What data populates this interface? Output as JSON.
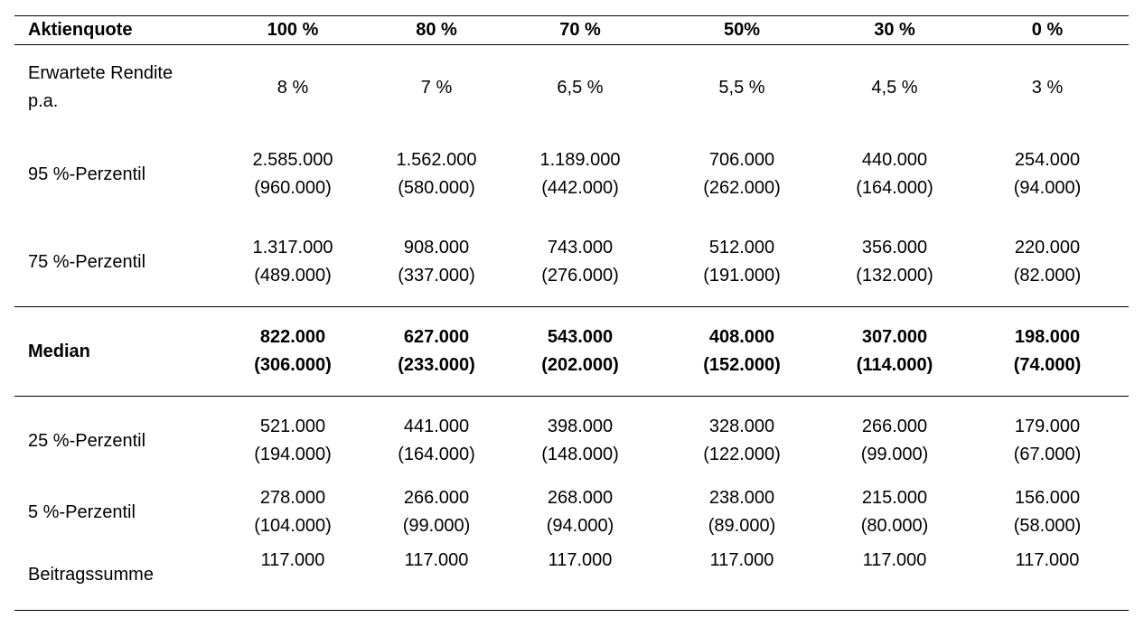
{
  "header": {
    "label": "Aktienquote",
    "columns": [
      "100 %",
      "80 %",
      "70 %",
      "50%",
      "30 %",
      "0 %"
    ]
  },
  "rows": [
    {
      "label": [
        "Erwartete Rendite",
        "p.a."
      ],
      "values": [
        [
          "8 %"
        ],
        [
          "7 %"
        ],
        [
          "6,5 %"
        ],
        [
          "5,5 %"
        ],
        [
          "4,5 %"
        ],
        [
          "3 %"
        ]
      ]
    },
    {
      "label": [
        "95 %-Perzentil"
      ],
      "values": [
        [
          "2.585.000",
          "(960.000)"
        ],
        [
          "1.562.000",
          "(580.000)"
        ],
        [
          "1.189.000",
          "(442.000)"
        ],
        [
          "706.000",
          "(262.000)"
        ],
        [
          "440.000",
          "(164.000)"
        ],
        [
          "254.000",
          "(94.000)"
        ]
      ]
    },
    {
      "label": [
        "75 %-Perzentil"
      ],
      "values": [
        [
          "1.317.000",
          "(489.000)"
        ],
        [
          "908.000",
          "(337.000)"
        ],
        [
          "743.000",
          "(276.000)"
        ],
        [
          "512.000",
          "(191.000)"
        ],
        [
          "356.000",
          "(132.000)"
        ],
        [
          "220.000",
          "(82.000)"
        ]
      ]
    },
    {
      "label": [
        "Median"
      ],
      "bold": true,
      "values": [
        [
          "822.000",
          "(306.000)"
        ],
        [
          "627.000",
          "(233.000)"
        ],
        [
          "543.000",
          "(202.000)"
        ],
        [
          "408.000",
          "(152.000)"
        ],
        [
          "307.000",
          "(114.000)"
        ],
        [
          "198.000",
          "(74.000)"
        ]
      ]
    },
    {
      "label": [
        "25 %-Perzentil"
      ],
      "values": [
        [
          "521.000",
          "(194.000)"
        ],
        [
          "441.000",
          "(164.000)"
        ],
        [
          "398.000",
          "(148.000)"
        ],
        [
          "328.000",
          "(122.000)"
        ],
        [
          "266.000",
          "(99.000)"
        ],
        [
          "179.000",
          "(67.000)"
        ]
      ]
    },
    {
      "label": [
        "5 %-Perzentil"
      ],
      "values": [
        [
          "278.000",
          "(104.000)"
        ],
        [
          "266.000",
          "(99.000)"
        ],
        [
          "268.000",
          "(94.000)"
        ],
        [
          "238.000",
          "(89.000)"
        ],
        [
          "215.000",
          "(80.000)"
        ],
        [
          "156.000",
          "(58.000)"
        ]
      ]
    },
    {
      "label": [
        "Beitragssumme"
      ],
      "values": [
        [
          "117.000"
        ],
        [
          "117.000"
        ],
        [
          "117.000"
        ],
        [
          "117.000"
        ],
        [
          "117.000"
        ],
        [
          "117.000"
        ]
      ]
    }
  ]
}
